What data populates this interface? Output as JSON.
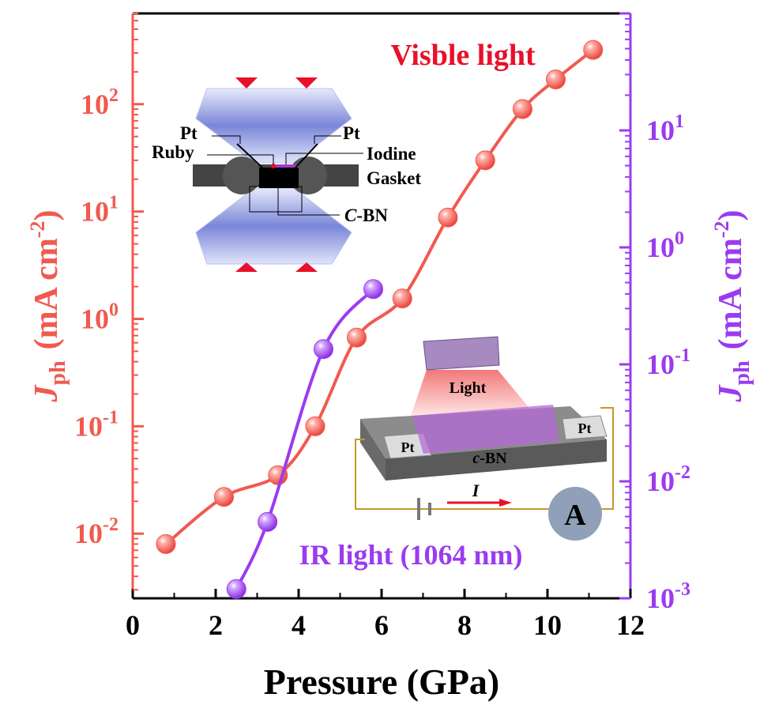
{
  "colors": {
    "visible": "#f05a50",
    "ir": "#9b3bf0",
    "axis_left": "#f05a50",
    "axis_right": "#9b3bf0",
    "text_dark": "#000000",
    "inset_red": "#e8102a"
  },
  "labels": {
    "visible_series": "Visble light",
    "ir_series": "IR light (1064 nm)",
    "xlabel": "Pressure (GPa)",
    "ylabel_left": "J",
    "ylabel_left_sub": "ph",
    "ylabel_left_units": "(mA cm",
    "ylabel_left_exp": "-2",
    "ylabel_left_close": ")",
    "ylabel_right": "J",
    "ylabel_right_sub": "ph",
    "ylabel_right_units": "(mA cm",
    "ylabel_right_exp": "-2",
    "ylabel_right_close": ")"
  },
  "inset_dac": {
    "pt_left": "Pt",
    "pt_right": "Pt",
    "ruby": "Ruby",
    "iodine": "Iodine",
    "gasket": "Gasket",
    "cbn_italic": "C",
    "cbn_rest": "-BN"
  },
  "inset_device": {
    "light": "Light",
    "pt_left": "Pt",
    "pt_right": "Pt",
    "cbn_italic": "c",
    "cbn_rest": "-BN",
    "current": "I",
    "ammeter": "A"
  },
  "chart_data": {
    "type": "scatter",
    "xlabel": "Pressure (GPa)",
    "xlim": [
      0,
      12
    ],
    "xticks": [
      0,
      2,
      4,
      6,
      8,
      10,
      12
    ],
    "y_left": {
      "scale": "log",
      "lim": [
        0.0025,
        700
      ],
      "ticks": [
        0.01,
        0.1,
        1,
        10,
        100
      ],
      "tick_exps": [
        "-2",
        "-1",
        "0",
        "1",
        "2"
      ]
    },
    "y_right": {
      "scale": "log",
      "lim": [
        0.001,
        100
      ],
      "ticks": [
        0.001,
        0.01,
        0.1,
        1,
        10
      ],
      "tick_exps": [
        "-3",
        "-2",
        "-1",
        "0",
        "1"
      ]
    },
    "series": [
      {
        "name": "Visble light",
        "axis": "left",
        "color": "#f05a50",
        "x": [
          0.8,
          2.2,
          3.5,
          4.4,
          5.4,
          6.5,
          7.6,
          8.5,
          9.4,
          10.2,
          11.1
        ],
        "y": [
          0.008,
          0.022,
          0.035,
          0.1,
          0.67,
          1.55,
          8.8,
          30,
          90,
          170,
          320
        ]
      },
      {
        "name": "IR light (1064 nm)",
        "axis": "right",
        "color": "#9b3bf0",
        "x": [
          2.5,
          3.25,
          4.6,
          5.8
        ],
        "y": [
          0.0012,
          0.0045,
          0.135,
          0.44
        ]
      }
    ]
  }
}
